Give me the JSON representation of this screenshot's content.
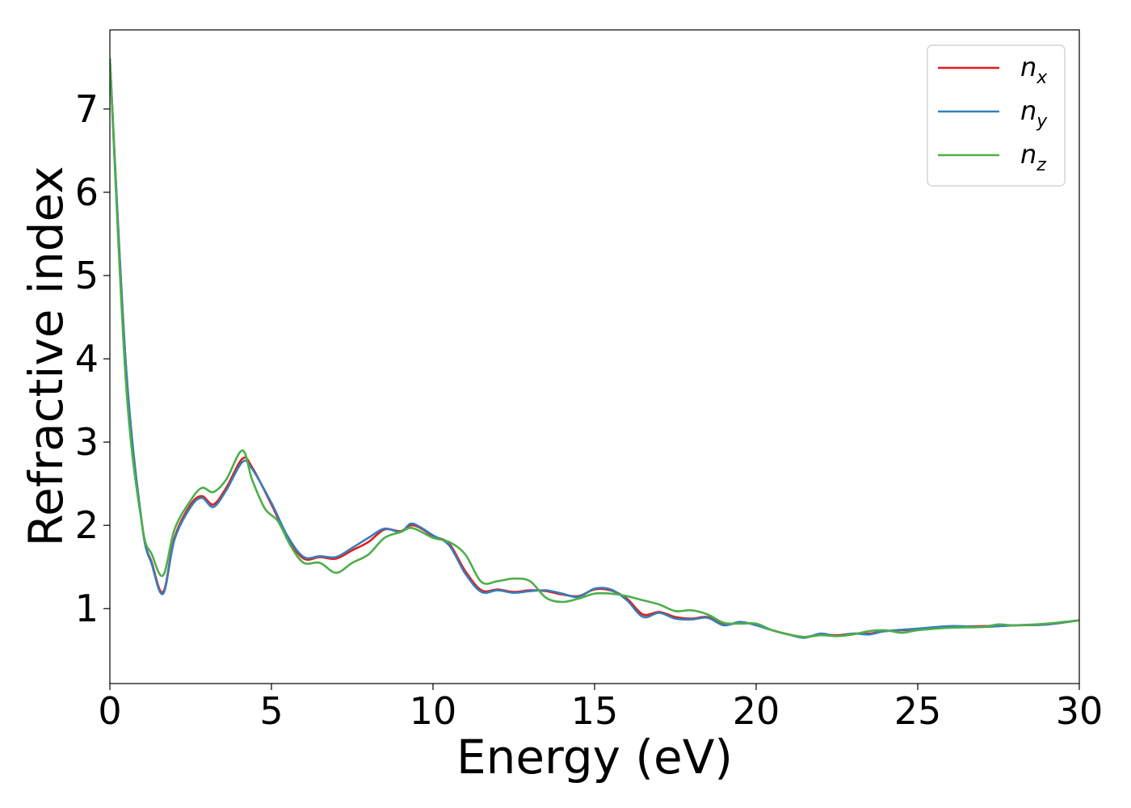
{
  "chart_data": {
    "type": "line",
    "title": "",
    "xlabel": "Energy (eV)",
    "ylabel": "Refractive index",
    "xlim": [
      0,
      30
    ],
    "ylim": [
      0.1,
      7.95
    ],
    "xticks": [
      0,
      5,
      10,
      15,
      20,
      25,
      30
    ],
    "yticks": [
      1,
      2,
      3,
      4,
      5,
      6,
      7
    ],
    "grid": false,
    "legend_position": "top-right",
    "series": [
      {
        "name": "n_x",
        "label_base": "n",
        "label_sub": "x",
        "color": "#e41a1c",
        "x": [
          0,
          0.5,
          1.0,
          1.3,
          1.65,
          2.0,
          2.5,
          2.85,
          3.2,
          3.6,
          4.1,
          4.4,
          5.0,
          5.5,
          6.0,
          6.5,
          7.0,
          7.5,
          8.0,
          8.5,
          9.0,
          9.3,
          9.6,
          10.0,
          10.5,
          11.0,
          11.5,
          12.0,
          12.5,
          13.0,
          13.5,
          14.0,
          14.5,
          15.0,
          15.5,
          16.0,
          16.5,
          17.0,
          17.5,
          18.0,
          18.5,
          19.0,
          19.5,
          20.0,
          20.5,
          21.0,
          21.5,
          22.0,
          22.5,
          23.0,
          23.5,
          24.0,
          25.0,
          26.0,
          27.0,
          28.0,
          29.0,
          30.0
        ],
        "y": [
          7.6,
          3.9,
          2.0,
          1.55,
          1.2,
          1.85,
          2.25,
          2.35,
          2.25,
          2.45,
          2.8,
          2.7,
          2.25,
          1.85,
          1.6,
          1.62,
          1.6,
          1.7,
          1.8,
          1.95,
          1.93,
          2.0,
          1.97,
          1.87,
          1.78,
          1.45,
          1.22,
          1.23,
          1.2,
          1.22,
          1.21,
          1.17,
          1.15,
          1.23,
          1.22,
          1.12,
          0.93,
          0.96,
          0.9,
          0.88,
          0.9,
          0.81,
          0.83,
          0.81,
          0.74,
          0.69,
          0.66,
          0.69,
          0.68,
          0.7,
          0.7,
          0.73,
          0.75,
          0.78,
          0.79,
          0.8,
          0.81,
          0.86
        ]
      },
      {
        "name": "n_y",
        "label_base": "n",
        "label_sub": "y",
        "color": "#377eb8",
        "x": [
          0,
          0.5,
          1.0,
          1.3,
          1.65,
          2.0,
          2.5,
          2.85,
          3.2,
          3.6,
          4.1,
          4.4,
          5.0,
          5.5,
          6.0,
          6.5,
          7.0,
          7.5,
          8.0,
          8.5,
          9.0,
          9.3,
          9.6,
          10.0,
          10.5,
          11.0,
          11.5,
          12.0,
          12.5,
          13.0,
          13.5,
          14.0,
          14.5,
          15.0,
          15.5,
          16.0,
          16.5,
          17.0,
          17.5,
          18.0,
          18.5,
          19.0,
          19.5,
          20.0,
          20.5,
          21.0,
          21.5,
          22.0,
          22.5,
          23.0,
          23.5,
          24.0,
          25.0,
          26.0,
          27.0,
          28.0,
          29.0,
          30.0
        ],
        "y": [
          7.6,
          3.9,
          2.0,
          1.53,
          1.18,
          1.83,
          2.22,
          2.33,
          2.22,
          2.42,
          2.76,
          2.68,
          2.27,
          1.87,
          1.62,
          1.63,
          1.62,
          1.73,
          1.85,
          1.96,
          1.92,
          2.02,
          1.98,
          1.88,
          1.76,
          1.42,
          1.2,
          1.22,
          1.19,
          1.21,
          1.22,
          1.18,
          1.14,
          1.24,
          1.23,
          1.1,
          0.9,
          0.95,
          0.88,
          0.87,
          0.89,
          0.8,
          0.84,
          0.8,
          0.74,
          0.69,
          0.65,
          0.7,
          0.67,
          0.7,
          0.69,
          0.73,
          0.76,
          0.79,
          0.78,
          0.8,
          0.81,
          0.86
        ]
      },
      {
        "name": "n_z",
        "label_base": "n",
        "label_sub": "z",
        "color": "#4daf4a",
        "x": [
          0,
          0.5,
          1.0,
          1.3,
          1.65,
          2.0,
          2.5,
          2.85,
          3.2,
          3.6,
          4.1,
          4.4,
          4.8,
          5.2,
          5.6,
          6.0,
          6.5,
          7.0,
          7.5,
          8.0,
          8.5,
          9.0,
          9.3,
          9.6,
          10.0,
          10.5,
          11.0,
          11.5,
          12.0,
          12.5,
          13.0,
          13.5,
          14.0,
          14.5,
          15.0,
          15.5,
          16.0,
          16.5,
          17.0,
          17.5,
          18.0,
          18.5,
          19.0,
          19.5,
          20.0,
          20.5,
          21.0,
          21.5,
          22.0,
          22.5,
          23.0,
          23.5,
          24.0,
          24.5,
          25.0,
          26.0,
          27.0,
          27.5,
          28.0,
          29.0,
          30.0
        ],
        "y": [
          7.6,
          3.7,
          2.0,
          1.65,
          1.4,
          1.95,
          2.3,
          2.45,
          2.4,
          2.55,
          2.9,
          2.55,
          2.2,
          2.05,
          1.75,
          1.55,
          1.55,
          1.43,
          1.55,
          1.65,
          1.85,
          1.92,
          1.97,
          1.93,
          1.85,
          1.8,
          1.65,
          1.32,
          1.33,
          1.36,
          1.33,
          1.13,
          1.08,
          1.12,
          1.18,
          1.18,
          1.15,
          1.1,
          1.05,
          0.97,
          0.98,
          0.93,
          0.83,
          0.82,
          0.82,
          0.74,
          0.69,
          0.66,
          0.68,
          0.67,
          0.69,
          0.73,
          0.74,
          0.71,
          0.74,
          0.77,
          0.78,
          0.81,
          0.8,
          0.82,
          0.86
        ]
      }
    ]
  }
}
